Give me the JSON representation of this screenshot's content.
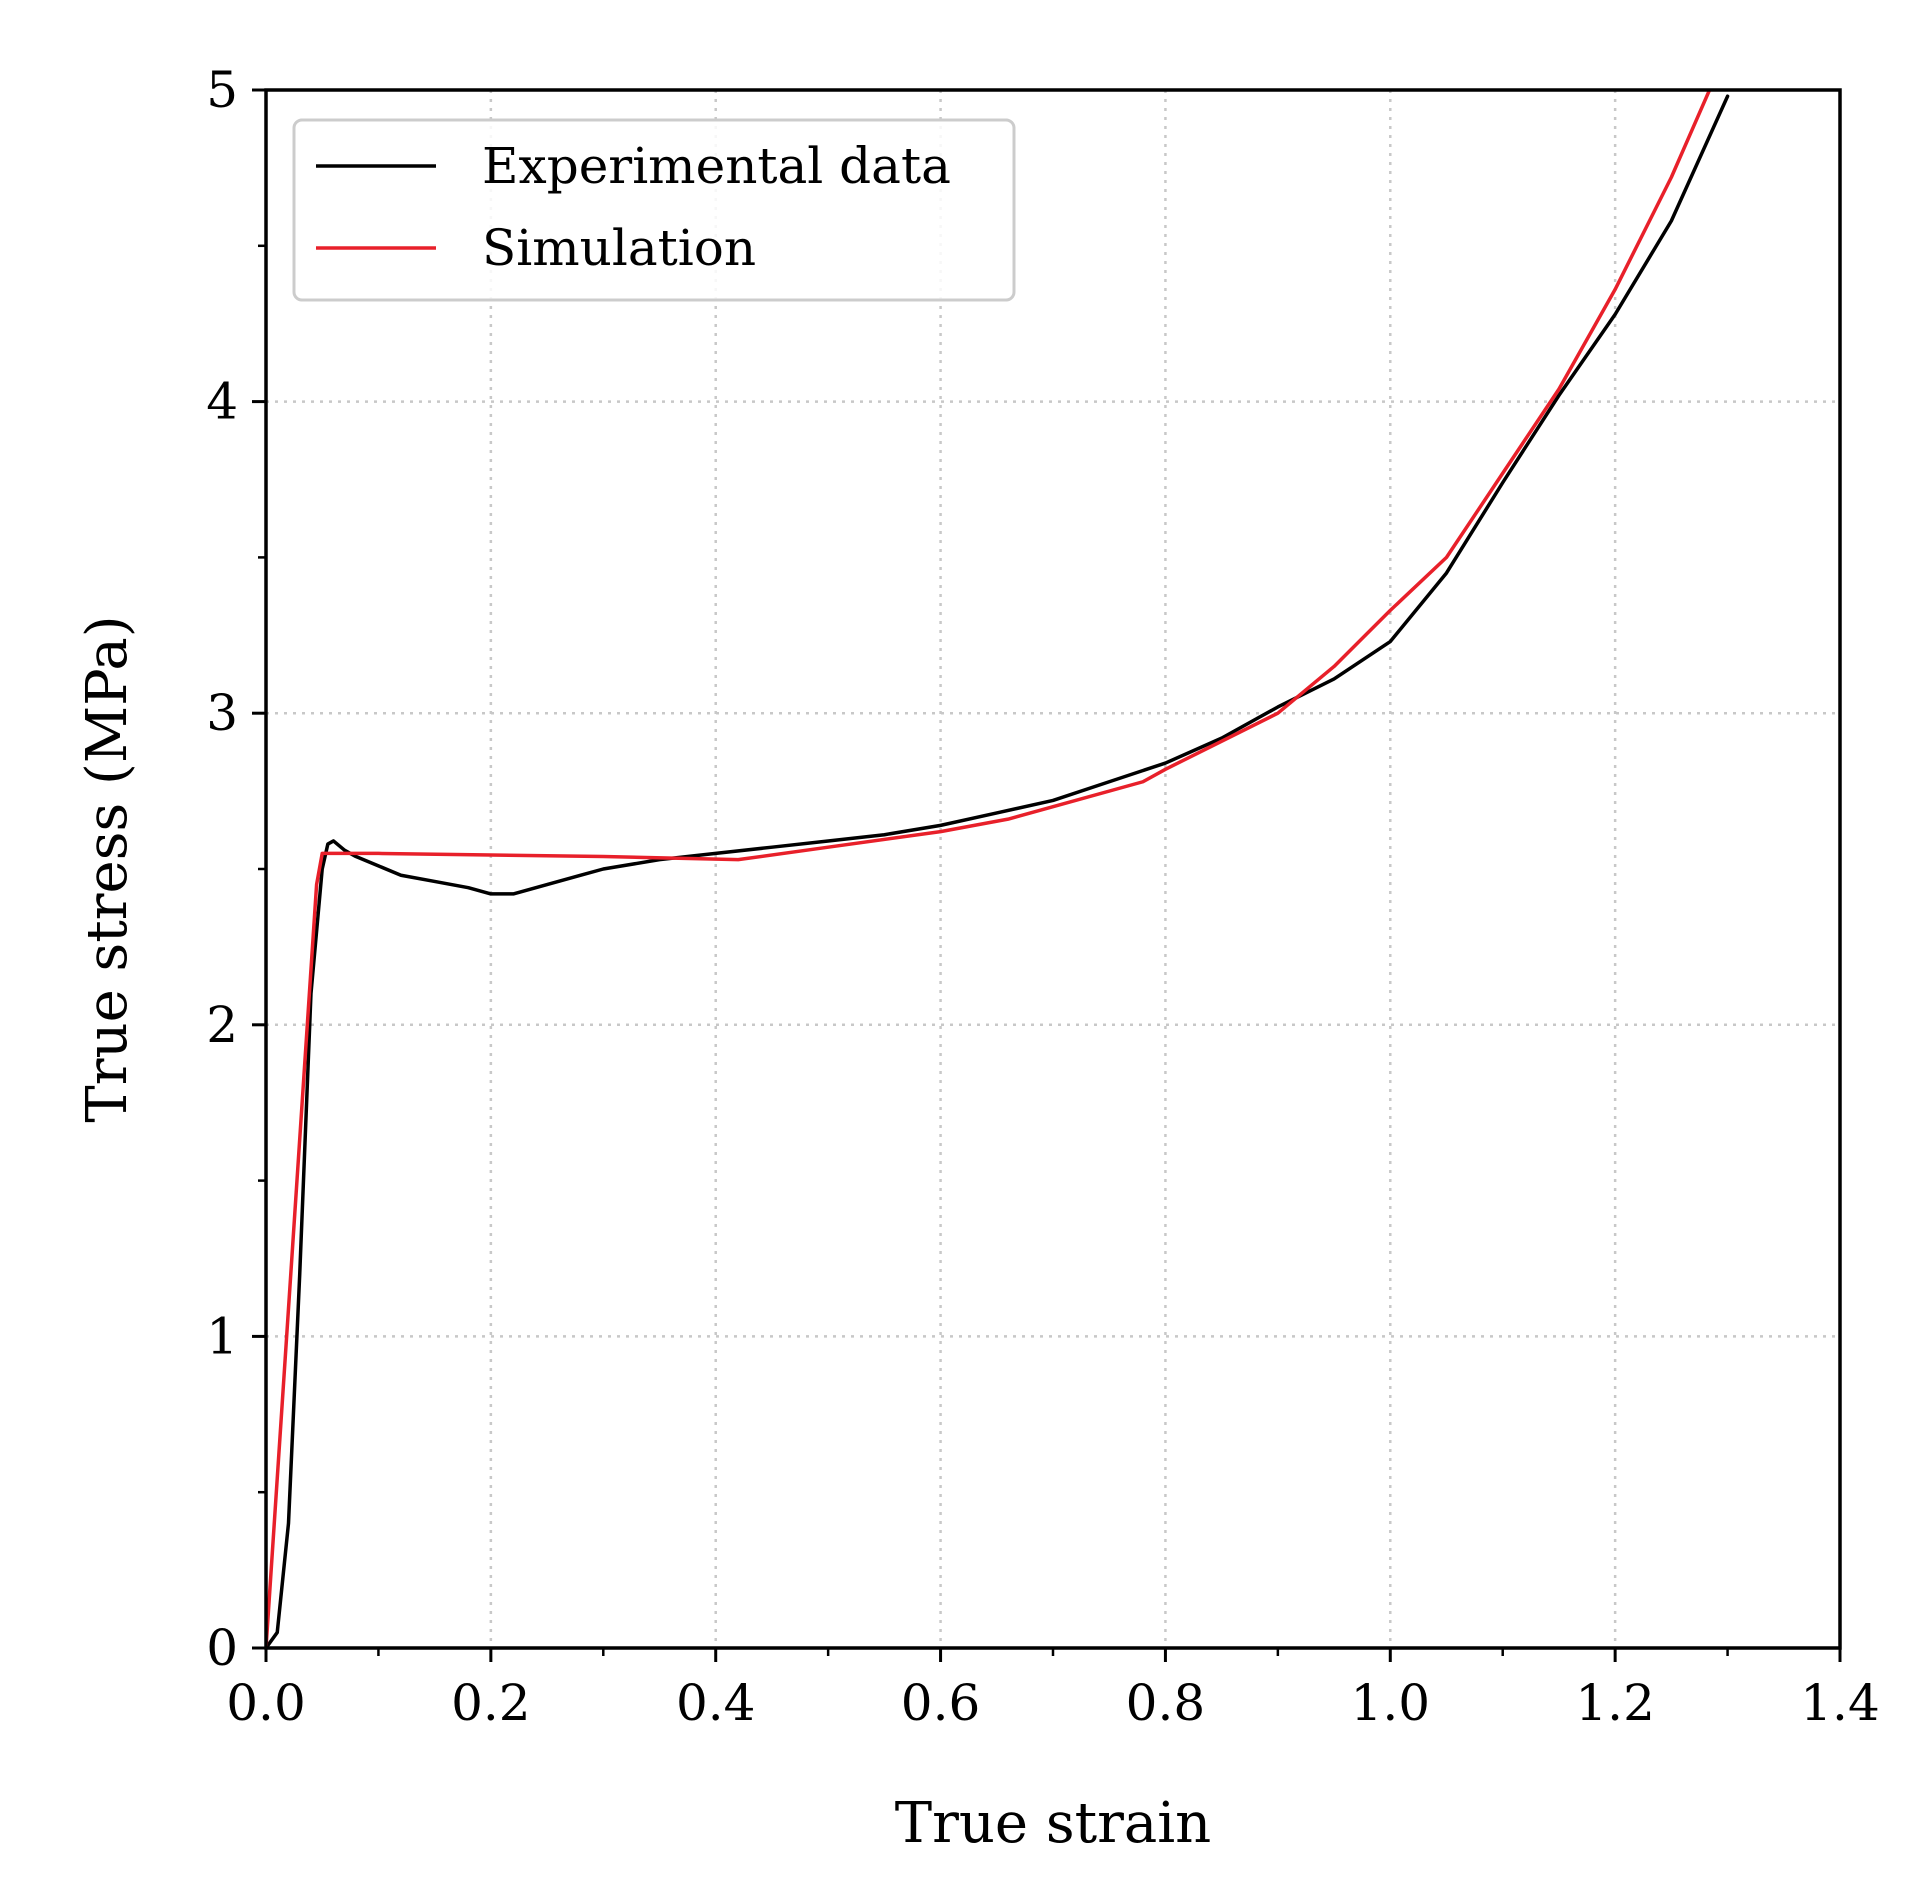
{
  "chart_data": {
    "type": "line",
    "xlabel": "True strain",
    "ylabel": "True stress (MPa)",
    "xlim": [
      0.0,
      1.4
    ],
    "ylim": [
      0,
      5
    ],
    "x_ticks": [
      "0.0",
      "0.2",
      "0.4",
      "0.6",
      "0.8",
      "1.0",
      "1.2",
      "1.4"
    ],
    "y_ticks": [
      "0",
      "1",
      "2",
      "3",
      "4",
      "5"
    ],
    "grid": true,
    "legend_position": "top-left",
    "series": [
      {
        "name": "Experimental data",
        "color": "#000000",
        "x": [
          0.0,
          0.01,
          0.02,
          0.03,
          0.04,
          0.05,
          0.055,
          0.06,
          0.07,
          0.08,
          0.1,
          0.12,
          0.15,
          0.18,
          0.2,
          0.22,
          0.25,
          0.28,
          0.3,
          0.35,
          0.4,
          0.45,
          0.5,
          0.55,
          0.6,
          0.65,
          0.7,
          0.75,
          0.8,
          0.85,
          0.9,
          0.95,
          1.0,
          1.05,
          1.1,
          1.15,
          1.2,
          1.25,
          1.3
        ],
        "y": [
          0.0,
          0.05,
          0.4,
          1.2,
          2.1,
          2.5,
          2.58,
          2.59,
          2.56,
          2.54,
          2.51,
          2.48,
          2.46,
          2.44,
          2.42,
          2.42,
          2.45,
          2.48,
          2.5,
          2.53,
          2.55,
          2.57,
          2.59,
          2.61,
          2.64,
          2.68,
          2.72,
          2.78,
          2.84,
          2.92,
          3.02,
          3.11,
          3.23,
          3.45,
          3.74,
          4.02,
          4.28,
          4.58,
          4.98
        ]
      },
      {
        "name": "Simulation",
        "color": "#e8202a",
        "x": [
          0.0,
          0.045,
          0.05,
          0.1,
          0.2,
          0.3,
          0.42,
          0.5,
          0.6,
          0.66,
          0.7,
          0.78,
          0.8,
          0.9,
          0.95,
          1.0,
          1.05,
          1.1,
          1.15,
          1.2,
          1.25,
          1.29
        ],
        "y": [
          0.0,
          2.45,
          2.55,
          2.55,
          2.545,
          2.54,
          2.53,
          2.57,
          2.62,
          2.66,
          2.7,
          2.78,
          2.82,
          3.0,
          3.15,
          3.33,
          3.5,
          3.77,
          4.04,
          4.36,
          4.72,
          5.05
        ]
      }
    ]
  }
}
